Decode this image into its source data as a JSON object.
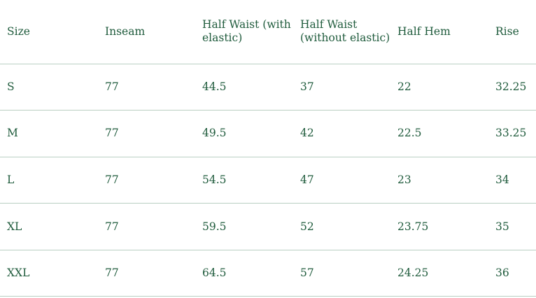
{
  "table": {
    "headers": [
      "Size",
      "Inseam",
      "Half Waist (with elastic)",
      "Half Waist (without elastic)",
      "Half Hem",
      "Rise"
    ],
    "rows": [
      [
        "S",
        "77",
        "44.5",
        "37",
        "22",
        "32.25"
      ],
      [
        "M",
        "77",
        "49.5",
        "42",
        "22.5",
        "33.25"
      ],
      [
        "L",
        "77",
        "54.5",
        "47",
        "23",
        "34"
      ],
      [
        "XL",
        "77",
        "59.5",
        "52",
        "23.75",
        "35"
      ],
      [
        "XXL",
        "77",
        "64.5",
        "57",
        "24.25",
        "36"
      ]
    ]
  },
  "colors": {
    "text": "#1f5b3c",
    "divider": "#b9cfc2",
    "background": "#ffffff"
  }
}
